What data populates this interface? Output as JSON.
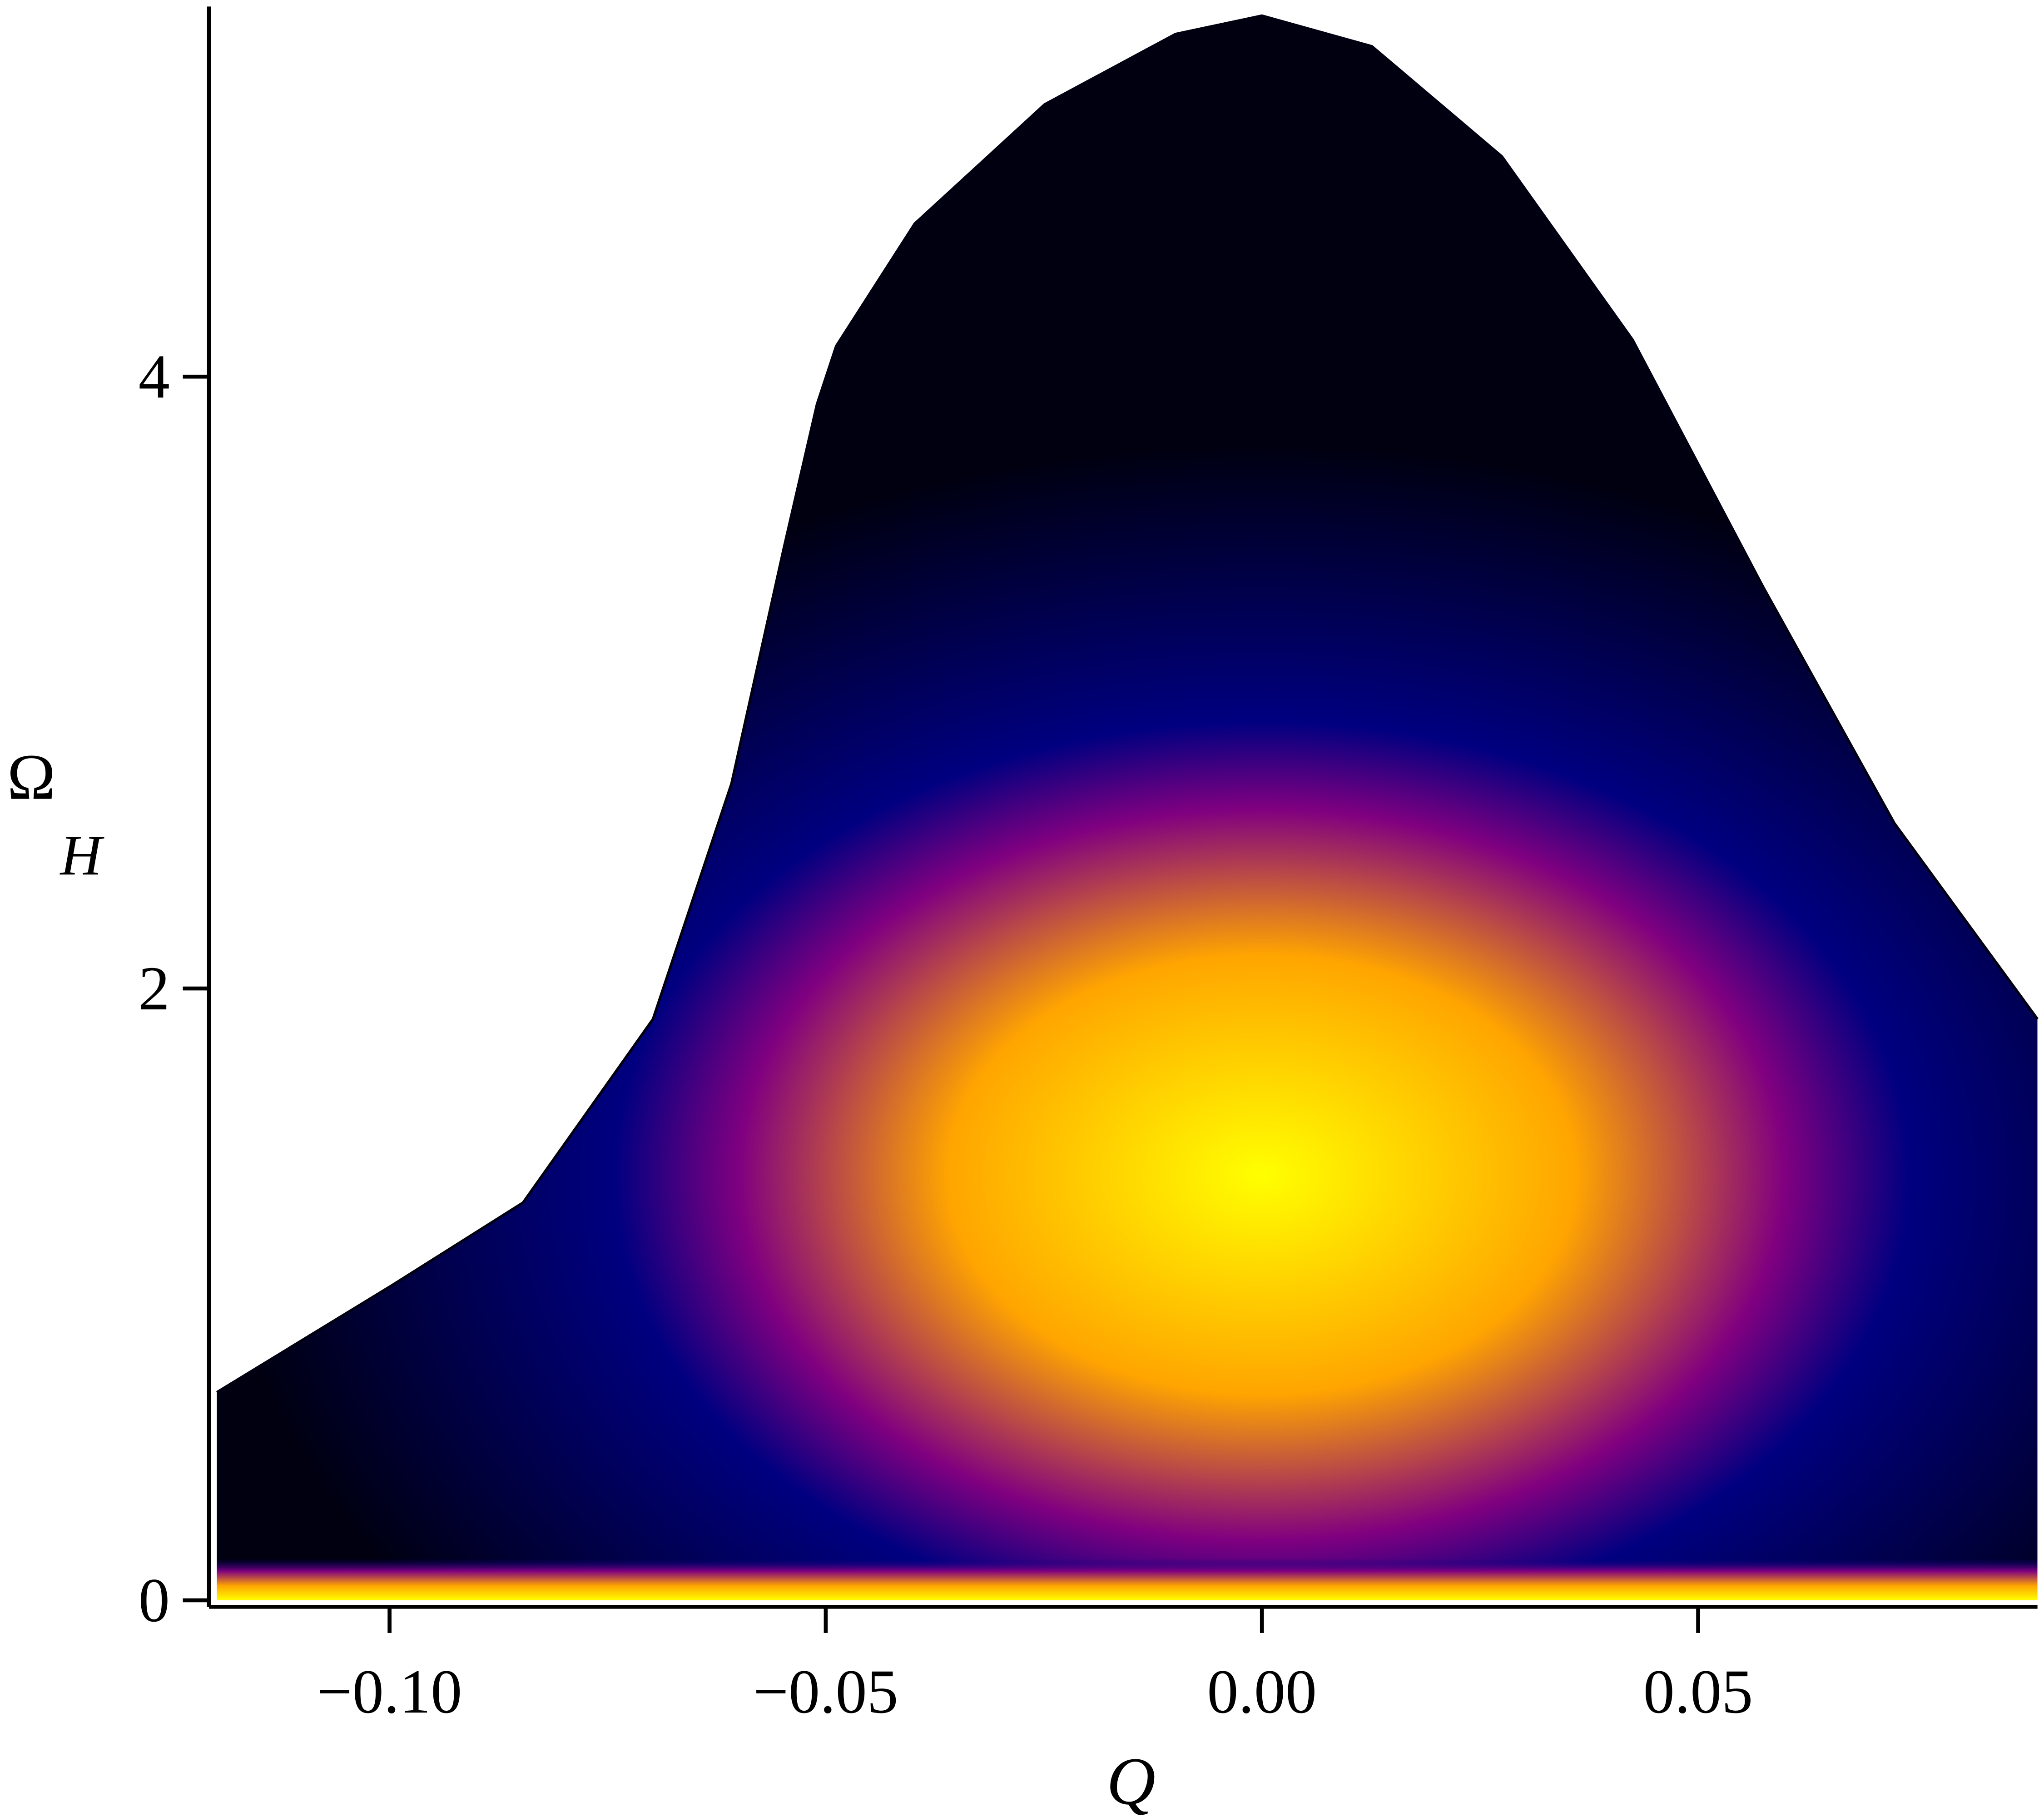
{
  "chart_data": {
    "type": "region",
    "xlabel": "Q",
    "ylabel": {
      "symbol": "Ω",
      "subscript": "H"
    },
    "x": [
      -0.1198,
      -0.0997,
      -0.0847,
      -0.0698,
      -0.0608,
      -0.0548,
      -0.051,
      -0.0488,
      -0.0398,
      -0.0249,
      -0.0099,
      0.0,
      0.0126,
      0.0275,
      0.0425,
      0.0575,
      0.0725,
      0.0889
    ],
    "values": [
      0.68,
      1.03,
      1.3,
      1.9,
      2.67,
      3.44,
      3.91,
      4.1,
      4.5,
      4.89,
      5.12,
      5.18,
      5.08,
      4.72,
      4.12,
      3.31,
      2.54,
      1.9
    ],
    "colormap": [
      "#ffff00",
      "#ffa500",
      "#800080",
      "#000080",
      "#000010"
    ],
    "xlim": [
      -0.1207,
      0.0889
    ],
    "ylim": [
      0,
      5.21
    ],
    "xticks": [
      {
        "value": -0.1,
        "label": "−0.10"
      },
      {
        "value": -0.05,
        "label": "−0.05"
      },
      {
        "value": 0,
        "label": "0.00"
      },
      0.05
    ],
    "yticks": [
      0,
      2,
      4
    ]
  }
}
